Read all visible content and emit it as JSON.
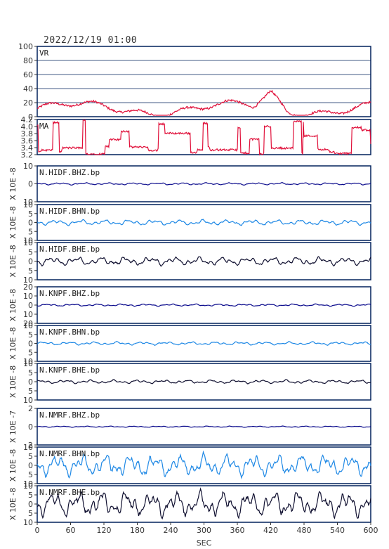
{
  "header": {
    "title": "2022/12/19 01:00"
  },
  "chart_data": {
    "type": "line",
    "xlabel": "SEC",
    "xlim": [
      0,
      600
    ],
    "xticks": [
      "0",
      "60",
      "120",
      "180",
      "240",
      "300",
      "360",
      "420",
      "480",
      "540",
      "600"
    ],
    "colors": {
      "frame": "#00205b",
      "red": "#e0103a",
      "navy": "#0a0a8c",
      "blue": "#1e88e5",
      "black": "#101030"
    },
    "panels": [
      {
        "label": "VR",
        "ylabel": "",
        "ylim": [
          0,
          100
        ],
        "yticks": [
          "100",
          "80",
          "60",
          "40",
          "20",
          "0"
        ],
        "grid": true,
        "series_color": "red",
        "pattern": "vr"
      },
      {
        "label": "MA",
        "ylabel": "",
        "ylim": [
          3.1,
          4.2
        ],
        "yticks": [
          "4.2",
          "4.0",
          "3.8",
          "3.6",
          "3.4",
          "3.2"
        ],
        "grid": false,
        "series_color": "red",
        "pattern": "ma"
      },
      {
        "label": "N.HIDF.BHZ.bp",
        "ylabel": "X 10E -8",
        "ylim": [
          -10,
          10
        ],
        "yticks": [
          "10",
          "0",
          "10"
        ],
        "series_color": "navy",
        "amplitude": 0.6
      },
      {
        "label": "N.HIDF.BHN.bp",
        "ylabel": "X 10E -8",
        "ylim": [
          -10,
          10
        ],
        "yticks": [
          "10",
          "5",
          "0",
          "5",
          "10"
        ],
        "series_color": "blue",
        "amplitude": 1.5
      },
      {
        "label": "N.HIDF.BHE.bp",
        "ylabel": "X 10E -8",
        "ylim": [
          -10,
          10
        ],
        "yticks": [
          "10",
          "5",
          "0",
          "5",
          "10"
        ],
        "series_color": "black",
        "amplitude": 2.2
      },
      {
        "label": "N.KNPF.BHZ.bp",
        "ylabel": "X 10E -8",
        "ylim": [
          -20,
          20
        ],
        "yticks": [
          "20",
          "10",
          "0",
          "10",
          "20"
        ],
        "series_color": "navy",
        "amplitude": 1.2
      },
      {
        "label": "N.KNPF.BHN.bp",
        "ylabel": "X 10E -8",
        "ylim": [
          -10,
          10
        ],
        "yticks": [
          "10",
          "5",
          "0",
          "5",
          "10"
        ],
        "series_color": "blue",
        "amplitude": 0.9
      },
      {
        "label": "N.KNPF.BHE.bp",
        "ylabel": "X 10E -8",
        "ylim": [
          -10,
          10
        ],
        "yticks": [
          "10",
          "5",
          "0",
          "5",
          "10"
        ],
        "series_color": "black",
        "amplitude": 1.0
      },
      {
        "label": "N.NMRF.BHZ.bp",
        "ylabel": "X 10E -7",
        "ylim": [
          -3,
          3
        ],
        "yticks": [
          "2",
          "0",
          "2"
        ],
        "series_color": "navy",
        "amplitude": 0.1
      },
      {
        "label": "N.NMRF.BHN.bp",
        "ylabel": "X 10E -8",
        "ylim": [
          -11,
          11
        ],
        "yticks": [
          "10",
          "5",
          "0",
          "5",
          "10"
        ],
        "series_color": "blue",
        "amplitude": 6.5
      },
      {
        "label": "N.NMRF.BHE.bp",
        "ylabel": "X 10E -8",
        "ylim": [
          -11,
          11
        ],
        "yticks": [
          "10",
          "5",
          "0",
          "5",
          "10"
        ],
        "series_color": "black",
        "amplitude": 7.5
      }
    ]
  }
}
